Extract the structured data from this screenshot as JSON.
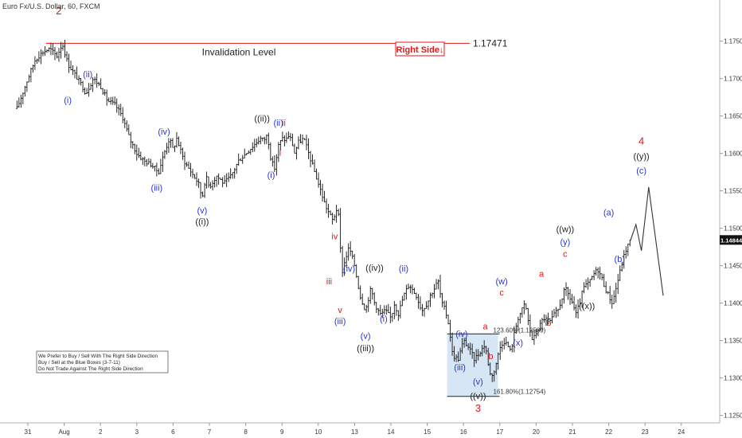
{
  "chart_data": {
    "type": "line",
    "title": "Euro Fx/U.S. Dollar, 60, FXCM",
    "price_scale": {
      "ylim": [
        1.124,
        1.1805
      ],
      "ticks": [
        "1.17500",
        "1.17000",
        "1.16500",
        "1.16000",
        "1.15500",
        "1.15000",
        "1.14500",
        "1.14000",
        "1.13500",
        "1.13000",
        "1.12500"
      ],
      "tick_values": [
        1.175,
        1.17,
        1.165,
        1.16,
        1.155,
        1.15,
        1.145,
        1.14,
        1.135,
        1.13,
        1.125
      ],
      "last_price": "1.14844"
    },
    "time_axis": {
      "labels": [
        "31",
        "Aug",
        "2",
        "3",
        "6",
        "7",
        "8",
        "9",
        "10",
        "13",
        "14",
        "15",
        "16",
        "17",
        "20",
        "21",
        "22",
        "23",
        "24"
      ],
      "index": [
        0,
        1,
        2,
        3,
        4,
        5,
        6,
        7,
        8,
        9,
        10,
        11,
        12,
        13,
        14,
        15,
        16,
        17,
        18
      ]
    },
    "price_path": [
      [
        -0.3,
        1.166
      ],
      [
        0.0,
        1.17
      ],
      [
        0.2,
        1.1725
      ],
      [
        0.4,
        1.1735
      ],
      [
        0.6,
        1.174
      ],
      [
        0.8,
        1.173
      ],
      [
        0.95,
        1.1747
      ],
      [
        1.1,
        1.172
      ],
      [
        1.3,
        1.1705
      ],
      [
        1.5,
        1.169
      ],
      [
        1.6,
        1.168
      ],
      [
        1.8,
        1.17
      ],
      [
        2.0,
        1.169
      ],
      [
        2.2,
        1.167
      ],
      [
        2.4,
        1.1665
      ],
      [
        2.6,
        1.165
      ],
      [
        2.8,
        1.162
      ],
      [
        3.0,
        1.16
      ],
      [
        3.2,
        1.159
      ],
      [
        3.4,
        1.1585
      ],
      [
        3.6,
        1.1575
      ],
      [
        3.75,
        1.16
      ],
      [
        3.9,
        1.162
      ],
      [
        4.0,
        1.1605
      ],
      [
        4.1,
        1.162
      ],
      [
        4.3,
        1.159
      ],
      [
        4.5,
        1.1575
      ],
      [
        4.7,
        1.156
      ],
      [
        4.8,
        1.154
      ],
      [
        4.9,
        1.157
      ],
      [
        5.0,
        1.1555
      ],
      [
        5.2,
        1.157
      ],
      [
        5.4,
        1.156
      ],
      [
        5.6,
        1.157
      ],
      [
        5.8,
        1.159
      ],
      [
        6.0,
        1.16
      ],
      [
        6.2,
        1.161
      ],
      [
        6.4,
        1.162
      ],
      [
        6.5,
        1.1618
      ],
      [
        6.6,
        1.1625
      ],
      [
        6.7,
        1.159
      ],
      [
        6.8,
        1.158
      ],
      [
        6.9,
        1.161
      ],
      [
        7.0,
        1.162
      ],
      [
        7.1,
        1.1618
      ],
      [
        7.2,
        1.1625
      ],
      [
        7.3,
        1.161
      ],
      [
        7.35,
        1.16
      ],
      [
        7.45,
        1.1615
      ],
      [
        7.6,
        1.162
      ],
      [
        7.8,
        1.159
      ],
      [
        8.0,
        1.156
      ],
      [
        8.2,
        1.153
      ],
      [
        8.4,
        1.151
      ],
      [
        8.5,
        1.1525
      ],
      [
        8.55,
        1.152
      ],
      [
        8.65,
        1.144
      ],
      [
        8.75,
        1.146
      ],
      [
        8.85,
        1.1475
      ],
      [
        9.0,
        1.145
      ],
      [
        9.15,
        1.141
      ],
      [
        9.3,
        1.139
      ],
      [
        9.45,
        1.142
      ],
      [
        9.55,
        1.14
      ],
      [
        9.7,
        1.1385
      ],
      [
        9.85,
        1.139
      ],
      [
        10.0,
        1.138
      ],
      [
        10.1,
        1.14
      ],
      [
        10.2,
        1.1385
      ],
      [
        10.35,
        1.141
      ],
      [
        10.5,
        1.1425
      ],
      [
        10.7,
        1.141
      ],
      [
        10.85,
        1.139
      ],
      [
        11.0,
        1.14
      ],
      [
        11.1,
        1.1412
      ],
      [
        11.2,
        1.142
      ],
      [
        11.3,
        1.143
      ],
      [
        11.4,
        1.14
      ],
      [
        11.5,
        1.139
      ],
      [
        11.6,
        1.137
      ],
      [
        11.7,
        1.133
      ],
      [
        11.85,
        1.1325
      ],
      [
        12.0,
        1.135
      ],
      [
        12.15,
        1.134
      ],
      [
        12.3,
        1.1325
      ],
      [
        12.45,
        1.1335
      ],
      [
        12.6,
        1.1345
      ],
      [
        12.7,
        1.131
      ],
      [
        12.8,
        1.1302
      ],
      [
        12.9,
        1.132
      ],
      [
        13.0,
        1.134
      ],
      [
        13.1,
        1.135
      ],
      [
        13.2,
        1.1345
      ],
      [
        13.3,
        1.1335
      ],
      [
        13.4,
        1.136
      ],
      [
        13.5,
        1.138
      ],
      [
        13.6,
        1.139
      ],
      [
        13.7,
        1.14
      ],
      [
        13.8,
        1.137
      ],
      [
        13.9,
        1.135
      ],
      [
        14.0,
        1.136
      ],
      [
        14.2,
        1.138
      ],
      [
        14.4,
        1.1375
      ],
      [
        14.5,
        1.1385
      ],
      [
        14.6,
        1.139
      ],
      [
        14.7,
        1.1405
      ],
      [
        14.8,
        1.142
      ],
      [
        14.9,
        1.141
      ],
      [
        15.0,
        1.14
      ],
      [
        15.1,
        1.1385
      ],
      [
        15.2,
        1.14
      ],
      [
        15.3,
        1.142
      ],
      [
        15.4,
        1.1425
      ],
      [
        15.5,
        1.143
      ],
      [
        15.6,
        1.144
      ],
      [
        15.7,
        1.1445
      ],
      [
        15.8,
        1.1435
      ],
      [
        15.9,
        1.142
      ],
      [
        16.0,
        1.141
      ],
      [
        16.1,
        1.14
      ],
      [
        16.2,
        1.142
      ],
      [
        16.3,
        1.144
      ],
      [
        16.4,
        1.146
      ],
      [
        16.5,
        1.1475
      ],
      [
        16.6,
        1.1484
      ]
    ],
    "projection_path": [
      [
        16.6,
        1.1484
      ],
      [
        16.75,
        1.1505
      ],
      [
        16.9,
        1.147
      ],
      [
        17.1,
        1.1555
      ],
      [
        17.5,
        1.141
      ]
    ],
    "horizontal_lines": [
      {
        "name": "invalidation",
        "value": 1.17471,
        "label": "1.17471",
        "caption": "Invalidation Level",
        "color": "#e01818"
      }
    ],
    "blue_box": {
      "x_from": 11.55,
      "x_to": 12.95,
      "y_from": 1.12754,
      "y_to": 1.13589,
      "top_label": "123.60%(1.13589)",
      "bottom_label": "161.80%(1.12754)"
    },
    "right_side_label": "Right Side↓",
    "note_lines": [
      "We Prefer to Buy / Sell With The Right Side Direction",
      "Buy / Sell at the Blue Boxes (3-7-11)",
      "Do Not Trade Against The Right Side Direction"
    ],
    "wave_labels": [
      {
        "t": "2",
        "x": 0.85,
        "y": 1.1786,
        "color": "red-big"
      },
      {
        "t": "(ii)",
        "x": 1.65,
        "y": 1.1702,
        "color": "blue"
      },
      {
        "t": "(i)",
        "x": 1.1,
        "y": 1.1667,
        "color": "blue"
      },
      {
        "t": "(iv)",
        "x": 3.75,
        "y": 1.1625,
        "color": "blue"
      },
      {
        "t": "(iii)",
        "x": 3.55,
        "y": 1.155,
        "color": "blue"
      },
      {
        "t": "(v)",
        "x": 4.8,
        "y": 1.152,
        "color": "blue"
      },
      {
        "t": "((i))",
        "x": 4.8,
        "y": 1.1505,
        "color": "black"
      },
      {
        "t": "((ii))",
        "x": 6.45,
        "y": 1.1643,
        "color": "black"
      },
      {
        "t": "(ii)",
        "x": 6.9,
        "y": 1.1637,
        "color": "blue"
      },
      {
        "t": "ii",
        "x": 7.05,
        "y": 1.1637,
        "color": "red"
      },
      {
        "t": "i",
        "x": 6.95,
        "y": 1.1597,
        "color": "red"
      },
      {
        "t": "(i)",
        "x": 6.7,
        "y": 1.1567,
        "color": "blue"
      },
      {
        "t": "iv",
        "x": 8.45,
        "y": 1.1485,
        "color": "red"
      },
      {
        "t": "iii",
        "x": 8.3,
        "y": 1.1425,
        "color": "red"
      },
      {
        "t": "(iv)",
        "x": 8.85,
        "y": 1.1442,
        "color": "blue"
      },
      {
        "t": "((iv))",
        "x": 9.55,
        "y": 1.1443,
        "color": "black"
      },
      {
        "t": "(ii)",
        "x": 10.35,
        "y": 1.1442,
        "color": "blue"
      },
      {
        "t": "v",
        "x": 8.6,
        "y": 1.1387,
        "color": "red"
      },
      {
        "t": "(iii)",
        "x": 8.6,
        "y": 1.1372,
        "color": "blue"
      },
      {
        "t": "(i)",
        "x": 9.8,
        "y": 1.1375,
        "color": "blue"
      },
      {
        "t": "(v)",
        "x": 9.3,
        "y": 1.1352,
        "color": "blue"
      },
      {
        "t": "((iii))",
        "x": 9.3,
        "y": 1.1336,
        "color": "black"
      },
      {
        "t": "(iv)",
        "x": 11.95,
        "y": 1.1355,
        "color": "blue"
      },
      {
        "t": "a",
        "x": 12.6,
        "y": 1.1365,
        "color": "red"
      },
      {
        "t": "b",
        "x": 12.75,
        "y": 1.1325,
        "color": "red"
      },
      {
        "t": "(iii)",
        "x": 11.9,
        "y": 1.131,
        "color": "blue"
      },
      {
        "t": "(v)",
        "x": 12.4,
        "y": 1.1291,
        "color": "blue"
      },
      {
        "t": "((v))",
        "x": 12.4,
        "y": 1.1272,
        "color": "black"
      },
      {
        "t": "3",
        "x": 12.4,
        "y": 1.1255,
        "color": "red-big"
      },
      {
        "t": "(w)",
        "x": 13.05,
        "y": 1.1425,
        "color": "blue"
      },
      {
        "t": "c",
        "x": 13.05,
        "y": 1.141,
        "color": "red"
      },
      {
        "t": "(x)",
        "x": 13.5,
        "y": 1.1343,
        "color": "blue"
      },
      {
        "t": "a",
        "x": 14.15,
        "y": 1.1435,
        "color": "red"
      },
      {
        "t": "b",
        "x": 14.35,
        "y": 1.137,
        "color": "red"
      },
      {
        "t": "((w))",
        "x": 14.8,
        "y": 1.1495,
        "color": "black"
      },
      {
        "t": "(y)",
        "x": 14.8,
        "y": 1.1478,
        "color": "blue"
      },
      {
        "t": "c",
        "x": 14.8,
        "y": 1.1462,
        "color": "red"
      },
      {
        "t": "((x))",
        "x": 15.4,
        "y": 1.1392,
        "color": "black"
      },
      {
        "t": "(a)",
        "x": 16.0,
        "y": 1.1517,
        "color": "blue"
      },
      {
        "t": "(b)",
        "x": 16.3,
        "y": 1.1455,
        "color": "blue"
      },
      {
        "t": "4",
        "x": 16.9,
        "y": 1.1612,
        "color": "red-big"
      },
      {
        "t": "((y))",
        "x": 16.9,
        "y": 1.1592,
        "color": "black"
      },
      {
        "t": "(c)",
        "x": 16.9,
        "y": 1.1573,
        "color": "blue"
      }
    ]
  }
}
